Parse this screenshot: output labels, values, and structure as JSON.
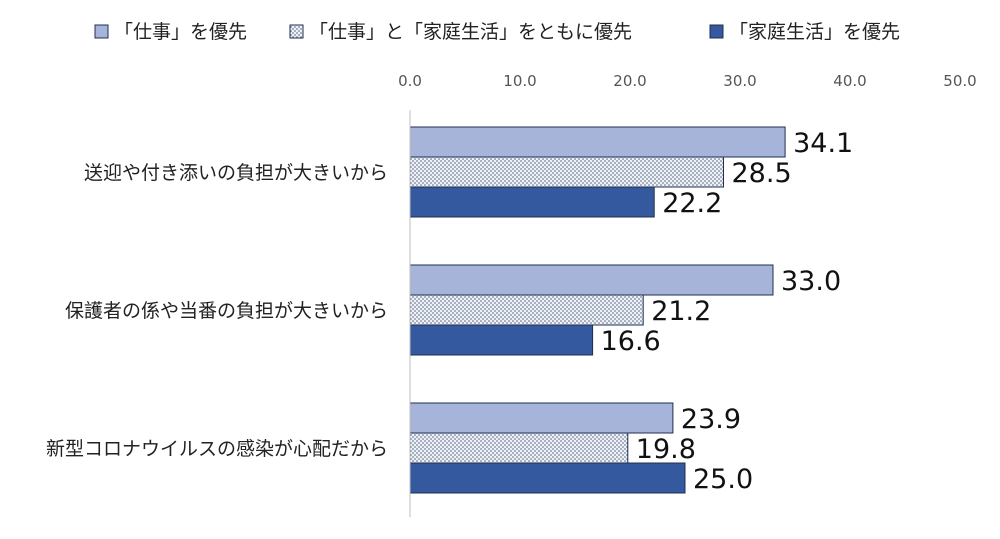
{
  "chart_data": {
    "type": "bar",
    "orientation": "horizontal",
    "categories": [
      "送迎や付き添いの負担が大きいから",
      "保護者の係や当番の負担が大きいから",
      "新型コロナウイルスの感染が心配だから"
    ],
    "series": [
      {
        "name": "「仕事」を優先",
        "values": [
          34.1,
          33.0,
          23.9
        ],
        "color": "#a6b4d9",
        "pattern": "solid"
      },
      {
        "name": "「仕事」と「家庭生活」をともに優先",
        "values": [
          28.5,
          21.2,
          19.8
        ],
        "color": "#dde3ee",
        "pattern": "dots"
      },
      {
        "name": "「家庭生活」を優先",
        "values": [
          22.2,
          16.6,
          25.0
        ],
        "color": "#35599f",
        "pattern": "solid"
      }
    ],
    "value_labels": [
      [
        "34.1",
        "33.0",
        "23.9"
      ],
      [
        "28.5",
        "21.2",
        "19.8"
      ],
      [
        "22.2",
        "16.6",
        "25.0"
      ]
    ],
    "xlim": [
      0,
      50
    ],
    "ticks": [
      "0.0",
      "10.0",
      "20.0",
      "30.0",
      "40.0",
      "50.0"
    ],
    "tick_values": [
      0,
      10,
      20,
      30,
      40,
      50
    ],
    "axis_position": "top",
    "legend_position": "top",
    "grid": false
  }
}
